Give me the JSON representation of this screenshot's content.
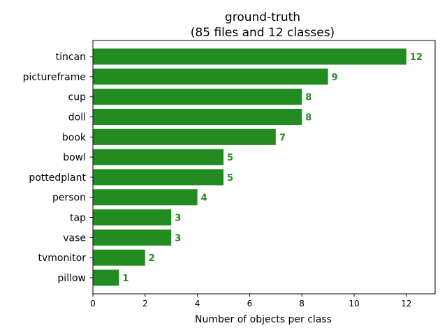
{
  "chart_data": {
    "type": "bar",
    "orientation": "horizontal",
    "title": "ground-truth",
    "subtitle": "(85 files and 12 classes)",
    "xlabel": "Number of objects per class",
    "ylabel": "",
    "categories": [
      "tincan",
      "pictureframe",
      "cup",
      "doll",
      "book",
      "bowl",
      "pottedplant",
      "person",
      "tap",
      "vase",
      "tvmonitor",
      "pillow"
    ],
    "values": [
      12,
      9,
      8,
      8,
      7,
      5,
      5,
      4,
      3,
      3,
      2,
      1
    ],
    "xlim": [
      0,
      13.1
    ],
    "xticks": [
      0,
      2,
      4,
      6,
      8,
      10,
      12
    ],
    "grid": false,
    "legend": "none",
    "bar_color": "#228b22",
    "label_color": "#228b22"
  }
}
